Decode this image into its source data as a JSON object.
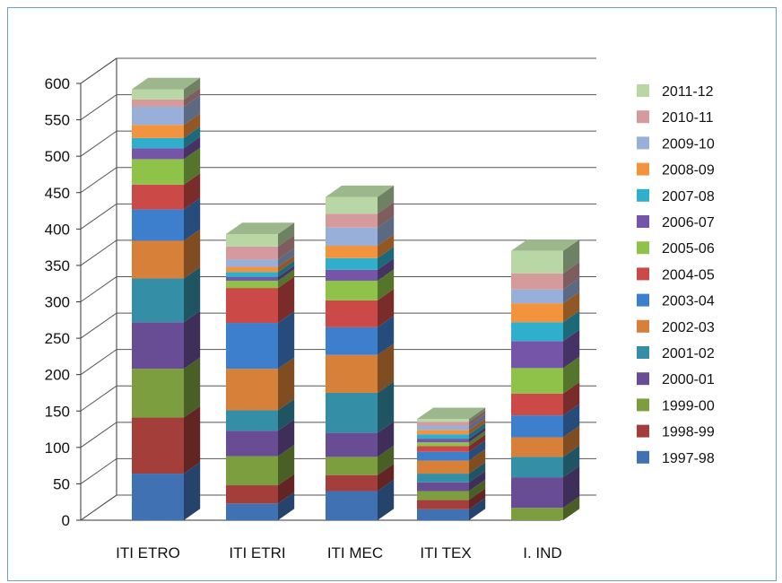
{
  "chart_data": {
    "type": "bar",
    "stacked": true,
    "style": "3d",
    "categories": [
      "ITI ETRO",
      "ITI ETRI",
      "ITI  MEC",
      "ITI TEX",
      "I. IND"
    ],
    "ylim": [
      0,
      600
    ],
    "yticks": [
      0,
      50,
      100,
      150,
      200,
      250,
      300,
      350,
      400,
      450,
      500,
      550,
      600
    ],
    "grid": true,
    "legend_position": "right",
    "series": [
      {
        "name": "1997-98",
        "color": "#3f71b3",
        "values": [
          64,
          23,
          40,
          15,
          0
        ]
      },
      {
        "name": "1998-99",
        "color": "#a43e3b",
        "values": [
          77,
          25,
          22,
          13,
          0
        ]
      },
      {
        "name": "1999-00",
        "color": "#7c9e3e",
        "values": [
          67,
          40,
          25,
          12,
          17
        ]
      },
      {
        "name": "2000-01",
        "color": "#684c94",
        "values": [
          64,
          35,
          33,
          12,
          42
        ]
      },
      {
        "name": "2001-02",
        "color": "#348ea5",
        "values": [
          60,
          28,
          55,
          12,
          28
        ]
      },
      {
        "name": "2002-03",
        "color": "#d6803a",
        "values": [
          52,
          57,
          52,
          18,
          27
        ]
      },
      {
        "name": "2003-04",
        "color": "#3d7fcc",
        "values": [
          43,
          63,
          38,
          12,
          30
        ]
      },
      {
        "name": "2004-05",
        "color": "#cb4a48",
        "values": [
          34,
          48,
          37,
          8,
          30
        ]
      },
      {
        "name": "2005-06",
        "color": "#8ec249",
        "values": [
          35,
          10,
          27,
          5,
          35
        ]
      },
      {
        "name": "2006-07",
        "color": "#7455a8",
        "values": [
          15,
          5,
          15,
          5,
          37
        ]
      },
      {
        "name": "2007-08",
        "color": "#2fafcc",
        "values": [
          14,
          7,
          16,
          6,
          26
        ]
      },
      {
        "name": "2008-09",
        "color": "#f2933e",
        "values": [
          18,
          7,
          17,
          6,
          26
        ]
      },
      {
        "name": "2009-10",
        "color": "#98b0d9",
        "values": [
          25,
          10,
          25,
          6,
          19
        ]
      },
      {
        "name": "2010-11",
        "color": "#d49a9c",
        "values": [
          10,
          18,
          19,
          5,
          22
        ]
      },
      {
        "name": "2011-12",
        "color": "#b8d7a4",
        "values": [
          14,
          17,
          23,
          4,
          31
        ]
      }
    ]
  }
}
